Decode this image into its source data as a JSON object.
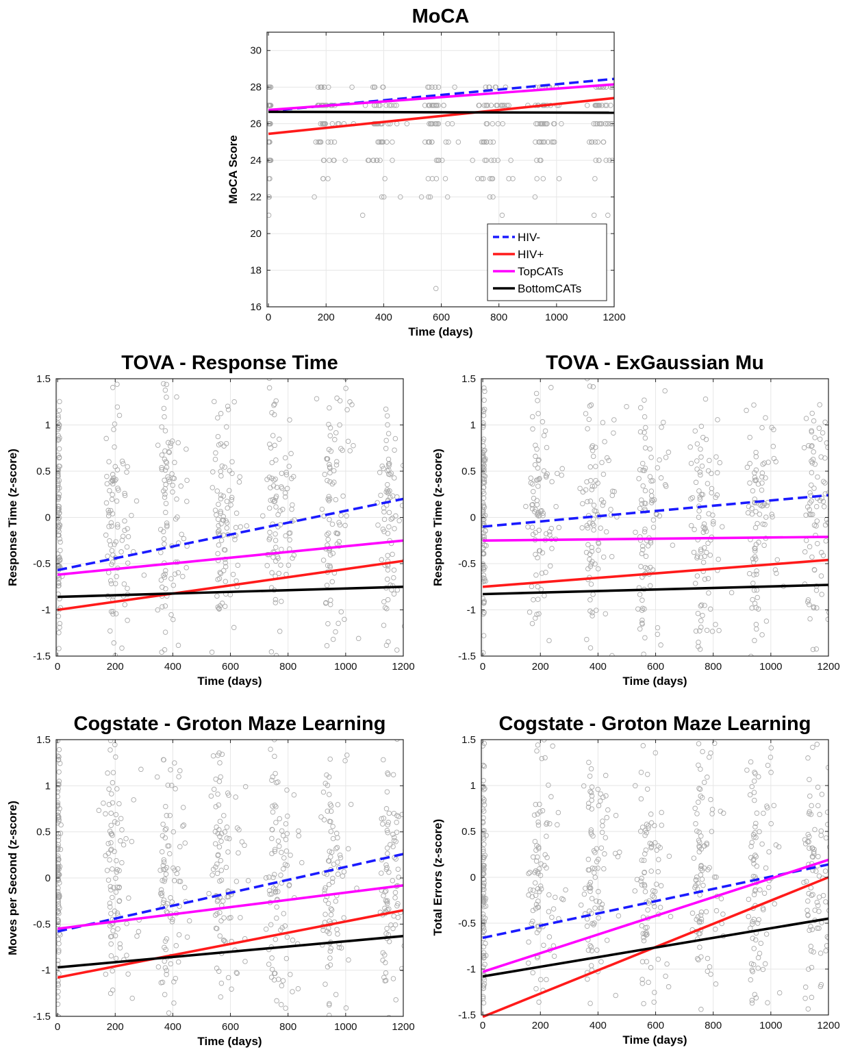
{
  "chart_data": [
    {
      "type": "scatter",
      "title": "MoCA",
      "xlabel": "Time (days)",
      "ylabel": "MoCA Score",
      "xlim": [
        -5,
        1200
      ],
      "ylim": [
        16,
        31
      ],
      "xticks": [
        0,
        200,
        400,
        600,
        800,
        1000,
        1200
      ],
      "yticks": [
        16,
        18,
        20,
        22,
        24,
        26,
        28,
        30
      ],
      "grid": true,
      "legend": "bottom-right",
      "scatter_points": "dense gray open circles at integer scores, clustered near days 0, 200, 380, 570, 760, 950, 1150",
      "series": [
        {
          "name": "HIV-",
          "style": "dashed",
          "color": "#1a1aff",
          "x": [
            0,
            1200
          ],
          "y": [
            26.7,
            28.45
          ]
        },
        {
          "name": "HIV+",
          "style": "solid",
          "color": "#ff1a1a",
          "x": [
            0,
            1200
          ],
          "y": [
            25.45,
            27.4
          ]
        },
        {
          "name": "TopCATs",
          "style": "solid",
          "color": "#ff00ff",
          "x": [
            0,
            1200
          ],
          "y": [
            26.75,
            28.15
          ]
        },
        {
          "name": "BottomCATs",
          "style": "solid",
          "color": "#000000",
          "x": [
            0,
            1200
          ],
          "y": [
            26.65,
            26.6
          ]
        }
      ]
    },
    {
      "type": "scatter",
      "title": "TOVA - Response Time",
      "xlabel": "Time (days)",
      "ylabel": "Response Time (z-score)",
      "xlim": [
        -5,
        1200
      ],
      "ylim": [
        -1.5,
        1.5
      ],
      "xticks": [
        0,
        200,
        400,
        600,
        800,
        1000,
        1200
      ],
      "yticks": [
        -1.5,
        -1,
        -0.5,
        0,
        0.5,
        1,
        1.5
      ],
      "grid": true,
      "series": [
        {
          "name": "HIV-",
          "style": "dashed",
          "color": "#1a1aff",
          "x": [
            0,
            1200
          ],
          "y": [
            -0.57,
            0.2
          ]
        },
        {
          "name": "HIV+",
          "style": "solid",
          "color": "#ff1a1a",
          "x": [
            0,
            1200
          ],
          "y": [
            -1.0,
            -0.47
          ]
        },
        {
          "name": "TopCATs",
          "style": "solid",
          "color": "#ff00ff",
          "x": [
            0,
            1200
          ],
          "y": [
            -0.62,
            -0.25
          ]
        },
        {
          "name": "BottomCATs",
          "style": "solid",
          "color": "#000000",
          "x": [
            0,
            1200
          ],
          "y": [
            -0.86,
            -0.75
          ]
        }
      ]
    },
    {
      "type": "scatter",
      "title": "TOVA - ExGaussian Mu",
      "xlabel": "Time (days)",
      "ylabel": "Response Time (z-score)",
      "xlim": [
        -5,
        1200
      ],
      "ylim": [
        -1.5,
        1.5
      ],
      "xticks": [
        0,
        200,
        400,
        600,
        800,
        1000,
        1200
      ],
      "yticks": [
        -1.5,
        -1,
        -0.5,
        0,
        0.5,
        1,
        1.5
      ],
      "grid": true,
      "series": [
        {
          "name": "HIV-",
          "style": "dashed",
          "color": "#1a1aff",
          "x": [
            0,
            1200
          ],
          "y": [
            -0.1,
            0.24
          ]
        },
        {
          "name": "HIV+",
          "style": "solid",
          "color": "#ff1a1a",
          "x": [
            0,
            1200
          ],
          "y": [
            -0.75,
            -0.46
          ]
        },
        {
          "name": "TopCATs",
          "style": "solid",
          "color": "#ff00ff",
          "x": [
            0,
            1200
          ],
          "y": [
            -0.25,
            -0.21
          ]
        },
        {
          "name": "BottomCATs",
          "style": "solid",
          "color": "#000000",
          "x": [
            0,
            1200
          ],
          "y": [
            -0.83,
            -0.73
          ]
        }
      ]
    },
    {
      "type": "scatter",
      "title": "Cogstate - Groton Maze Learning",
      "xlabel": "Time (days)",
      "ylabel": "Moves per Second (z-score)",
      "xlim": [
        -5,
        1200
      ],
      "ylim": [
        -1.5,
        1.5
      ],
      "xticks": [
        0,
        200,
        400,
        600,
        800,
        1000,
        1200
      ],
      "yticks": [
        -1.5,
        -1,
        -0.5,
        0,
        0.5,
        1,
        1.5
      ],
      "grid": true,
      "series": [
        {
          "name": "HIV-",
          "style": "dashed",
          "color": "#1a1aff",
          "x": [
            0,
            1200
          ],
          "y": [
            -0.58,
            0.26
          ]
        },
        {
          "name": "HIV+",
          "style": "solid",
          "color": "#ff1a1a",
          "x": [
            0,
            1200
          ],
          "y": [
            -1.08,
            -0.35
          ]
        },
        {
          "name": "TopCATs",
          "style": "solid",
          "color": "#ff00ff",
          "x": [
            0,
            1200
          ],
          "y": [
            -0.55,
            -0.08
          ]
        },
        {
          "name": "BottomCATs",
          "style": "solid",
          "color": "#000000",
          "x": [
            0,
            1200
          ],
          "y": [
            -0.97,
            -0.63
          ]
        }
      ]
    },
    {
      "type": "scatter",
      "title": "Cogstate - Groton Maze Learning",
      "xlabel": "Time (days)",
      "ylabel": "Total Errors (z-score)",
      "xlim": [
        -5,
        1200
      ],
      "ylim": [
        -1.5,
        1.5
      ],
      "xticks": [
        0,
        200,
        400,
        600,
        800,
        1000,
        1200
      ],
      "yticks": [
        -1.5,
        -1,
        -0.5,
        0,
        0.5,
        1,
        1.5
      ],
      "grid": true,
      "series": [
        {
          "name": "HIV-",
          "style": "dashed",
          "color": "#1a1aff",
          "x": [
            0,
            1200
          ],
          "y": [
            -0.66,
            0.14
          ]
        },
        {
          "name": "HIV+",
          "style": "solid",
          "color": "#ff1a1a",
          "x": [
            0,
            1200
          ],
          "y": [
            -1.52,
            0.0
          ]
        },
        {
          "name": "TopCATs",
          "style": "solid",
          "color": "#ff00ff",
          "x": [
            0,
            1200
          ],
          "y": [
            -1.03,
            0.19
          ]
        },
        {
          "name": "BottomCATs",
          "style": "solid",
          "color": "#000000",
          "x": [
            0,
            1200
          ],
          "y": [
            -1.08,
            -0.45
          ]
        }
      ]
    }
  ]
}
